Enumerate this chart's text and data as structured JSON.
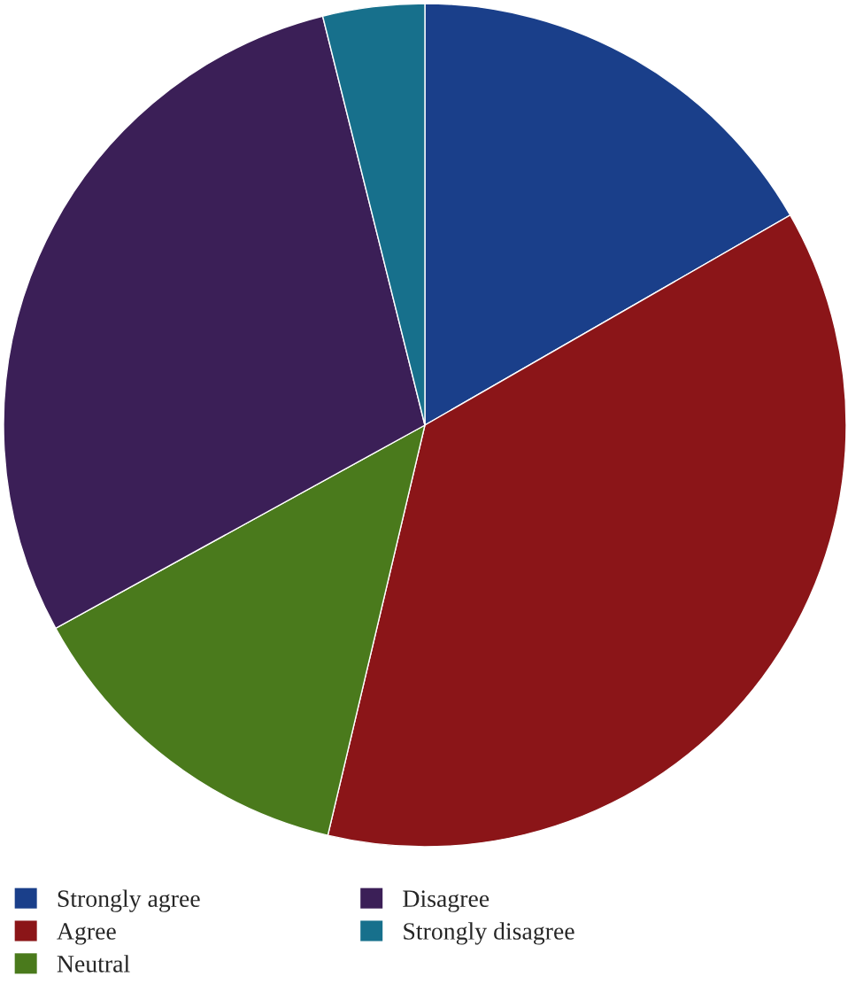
{
  "chart_data": {
    "type": "pie",
    "categories": [
      "Strongly agree",
      "Agree",
      "Neutral",
      "Disagree",
      "Strongly disagree"
    ],
    "values": [
      16.7,
      37.0,
      13.3,
      29.1,
      3.9
    ],
    "colors": [
      "#1a3f8a",
      "#8b1518",
      "#4a7a1c",
      "#3b1f57",
      "#17708c"
    ],
    "legend": "bottom"
  }
}
